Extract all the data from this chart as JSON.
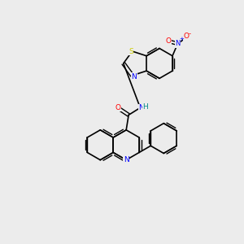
{
  "background_color": "#ececec",
  "bond_color": "#000000",
  "atom_colors": {
    "N": "#0000ff",
    "O": "#ff0000",
    "S": "#cccc00",
    "H": "#008888"
  },
  "figsize": [
    3.0,
    3.0
  ],
  "dpi": 100
}
